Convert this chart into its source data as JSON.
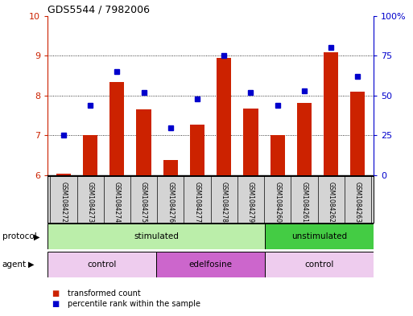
{
  "title": "GDS5544 / 7982006",
  "samples": [
    "GSM1084272",
    "GSM1084273",
    "GSM1084274",
    "GSM1084275",
    "GSM1084276",
    "GSM1084277",
    "GSM1084278",
    "GSM1084279",
    "GSM1084260",
    "GSM1084261",
    "GSM1084262",
    "GSM1084263"
  ],
  "transformed_count": [
    6.05,
    7.0,
    8.35,
    7.65,
    6.38,
    7.28,
    8.95,
    7.68,
    7.02,
    7.82,
    9.08,
    8.1
  ],
  "percentile_rank": [
    25,
    44,
    65,
    52,
    30,
    48,
    75,
    52,
    44,
    53,
    80,
    62
  ],
  "ylim_left": [
    6,
    10
  ],
  "ylim_right": [
    0,
    100
  ],
  "yticks_left": [
    6,
    7,
    8,
    9,
    10
  ],
  "yticks_right": [
    0,
    25,
    50,
    75,
    100
  ],
  "yticklabels_right": [
    "0",
    "25",
    "50",
    "75",
    "100%"
  ],
  "bar_color": "#cc2200",
  "dot_color": "#0000cc",
  "left_axis_color": "#cc2200",
  "right_axis_color": "#0000cc",
  "protocol_stimulated_color": "#bbeeaa",
  "protocol_unstimulated_color": "#44cc44",
  "agent_control_color": "#eeccee",
  "agent_edelfosine_color": "#cc66cc",
  "sample_box_color": "#d4d4d4",
  "legend_items": [
    {
      "label": "transformed count",
      "color": "#cc2200"
    },
    {
      "label": "percentile rank within the sample",
      "color": "#0000cc"
    }
  ],
  "protocol_label": "protocol",
  "agent_label": "agent"
}
